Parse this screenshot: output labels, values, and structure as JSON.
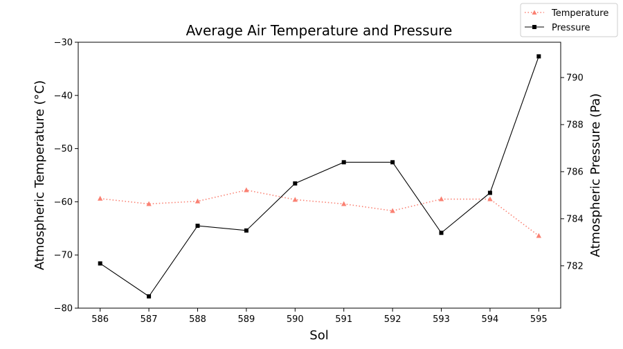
{
  "chart_data": {
    "type": "line",
    "title": "Average Air Temperature and Pressure",
    "xlabel": "Sol",
    "ylabel_left": "Atmospheric Temperature (°C)",
    "ylabel_right": "Atmospheric Pressure (Pa)",
    "x": [
      586,
      587,
      588,
      589,
      590,
      591,
      592,
      593,
      594,
      595
    ],
    "xlim": [
      585.55,
      595.45
    ],
    "ylim_left": [
      -80,
      -30
    ],
    "yticks_left": [
      -80,
      -70,
      -60,
      -50,
      -40,
      -30
    ],
    "ylim_right": [
      780.2,
      791.5
    ],
    "yticks_right": [
      782,
      784,
      786,
      788,
      790
    ],
    "grid": false,
    "legend_position": "top-right",
    "series": [
      {
        "name": "Temperature",
        "axis": "left",
        "color": "#fa8072",
        "line_style": "dotted",
        "marker": "triangle",
        "values": [
          -59.4,
          -60.4,
          -59.9,
          -57.8,
          -59.6,
          -60.4,
          -61.7,
          -59.5,
          -59.5,
          -66.4
        ]
      },
      {
        "name": "Pressure",
        "axis": "right",
        "color": "#000000",
        "line_style": "solid",
        "marker": "square",
        "values": [
          782.1,
          780.7,
          783.7,
          783.5,
          785.5,
          786.4,
          786.4,
          783.4,
          785.1,
          790.9
        ]
      }
    ]
  }
}
